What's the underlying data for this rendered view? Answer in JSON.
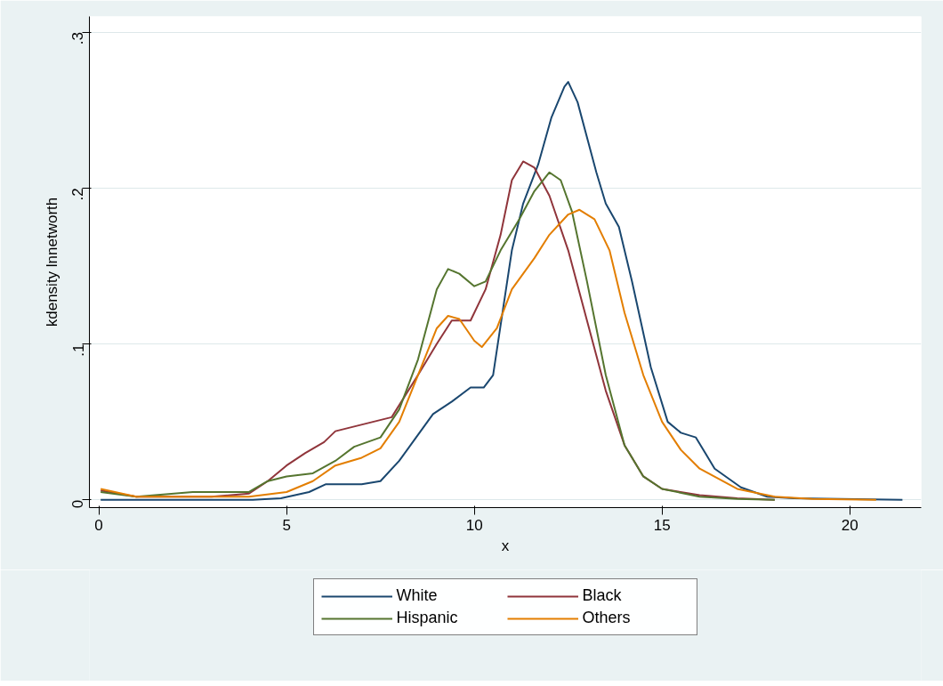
{
  "chart_data": {
    "type": "line",
    "xlabel": "x",
    "ylabel": "kdensity lnnetworth",
    "xlim": [
      -0.25,
      21.9
    ],
    "ylim": [
      -0.005,
      0.31
    ],
    "xticks": [
      0,
      5,
      10,
      15,
      20
    ],
    "yticks": [
      {
        "value": 0,
        "label": "0"
      },
      {
        "value": 0.1,
        "label": ".1"
      },
      {
        "value": 0.2,
        "label": ".2"
      },
      {
        "value": 0.3,
        "label": ".3"
      }
    ],
    "grid": "y",
    "legend": "bottom",
    "line_style": "solid",
    "series": [
      {
        "name": "White",
        "color": "#1a476f",
        "x": [
          0.05,
          4.1,
          4.85,
          5.6,
          6.05,
          7.0,
          7.5,
          8.0,
          8.45,
          8.9,
          9.4,
          9.9,
          10.25,
          10.5,
          10.75,
          11.0,
          11.3,
          11.7,
          12.05,
          12.4,
          12.5,
          12.75,
          13.25,
          13.5,
          13.85,
          14.2,
          14.7,
          15.15,
          15.5,
          15.9,
          16.4,
          17.1,
          17.8,
          18.5,
          21.4
        ],
        "values": [
          0,
          0,
          0.001,
          0.005,
          0.01,
          0.01,
          0.012,
          0.025,
          0.04,
          0.055,
          0.063,
          0.072,
          0.072,
          0.08,
          0.12,
          0.16,
          0.19,
          0.215,
          0.245,
          0.265,
          0.268,
          0.255,
          0.21,
          0.19,
          0.175,
          0.14,
          0.085,
          0.05,
          0.043,
          0.04,
          0.02,
          0.008,
          0.002,
          0.001,
          0
        ]
      },
      {
        "name": "Black",
        "color": "#90353b",
        "x": [
          0.05,
          1.0,
          3.0,
          4.0,
          4.5,
          5.0,
          5.5,
          6.0,
          6.3,
          6.8,
          7.3,
          7.8,
          8.5,
          9.0,
          9.4,
          9.9,
          10.3,
          10.7,
          11.0,
          11.3,
          11.6,
          12.0,
          12.5,
          13.0,
          13.5,
          14.0,
          14.5,
          15.0,
          16.0,
          17.0,
          18.0
        ],
        "values": [
          0.006,
          0.002,
          0.002,
          0.004,
          0.012,
          0.022,
          0.03,
          0.037,
          0.044,
          0.047,
          0.05,
          0.053,
          0.08,
          0.1,
          0.115,
          0.115,
          0.135,
          0.17,
          0.205,
          0.217,
          0.213,
          0.195,
          0.16,
          0.115,
          0.07,
          0.035,
          0.015,
          0.007,
          0.003,
          0.001,
          0
        ]
      },
      {
        "name": "Hispanic",
        "color": "#55752f",
        "x": [
          0.05,
          1.0,
          2.5,
          4.0,
          4.5,
          5.0,
          5.7,
          6.3,
          6.8,
          7.5,
          8.0,
          8.5,
          9.0,
          9.3,
          9.6,
          10.0,
          10.3,
          10.7,
          11.2,
          11.6,
          12.0,
          12.3,
          12.6,
          13.0,
          13.5,
          14.0,
          14.5,
          15.0,
          16.0,
          17.0,
          18.0
        ],
        "values": [
          0.005,
          0.002,
          0.005,
          0.005,
          0.012,
          0.015,
          0.017,
          0.025,
          0.034,
          0.04,
          0.058,
          0.09,
          0.135,
          0.148,
          0.145,
          0.137,
          0.14,
          0.16,
          0.18,
          0.198,
          0.21,
          0.205,
          0.185,
          0.14,
          0.08,
          0.035,
          0.015,
          0.007,
          0.002,
          0.0005,
          0
        ]
      },
      {
        "name": "Others",
        "color": "#e37e00",
        "x": [
          0.05,
          1.0,
          3.0,
          4.0,
          5.0,
          5.7,
          6.3,
          7.0,
          7.5,
          8.0,
          8.5,
          9.0,
          9.3,
          9.6,
          10.0,
          10.2,
          10.6,
          11.0,
          11.6,
          12.0,
          12.5,
          12.8,
          13.2,
          13.6,
          14.0,
          14.5,
          15.0,
          15.5,
          16.0,
          17.0,
          18.0,
          19.0,
          20.7
        ],
        "values": [
          0.007,
          0.002,
          0.002,
          0.002,
          0.005,
          0.012,
          0.022,
          0.027,
          0.033,
          0.05,
          0.08,
          0.11,
          0.118,
          0.116,
          0.102,
          0.098,
          0.11,
          0.135,
          0.155,
          0.17,
          0.183,
          0.186,
          0.18,
          0.16,
          0.12,
          0.08,
          0.05,
          0.032,
          0.02,
          0.007,
          0.002,
          0.0005,
          0
        ]
      }
    ]
  }
}
